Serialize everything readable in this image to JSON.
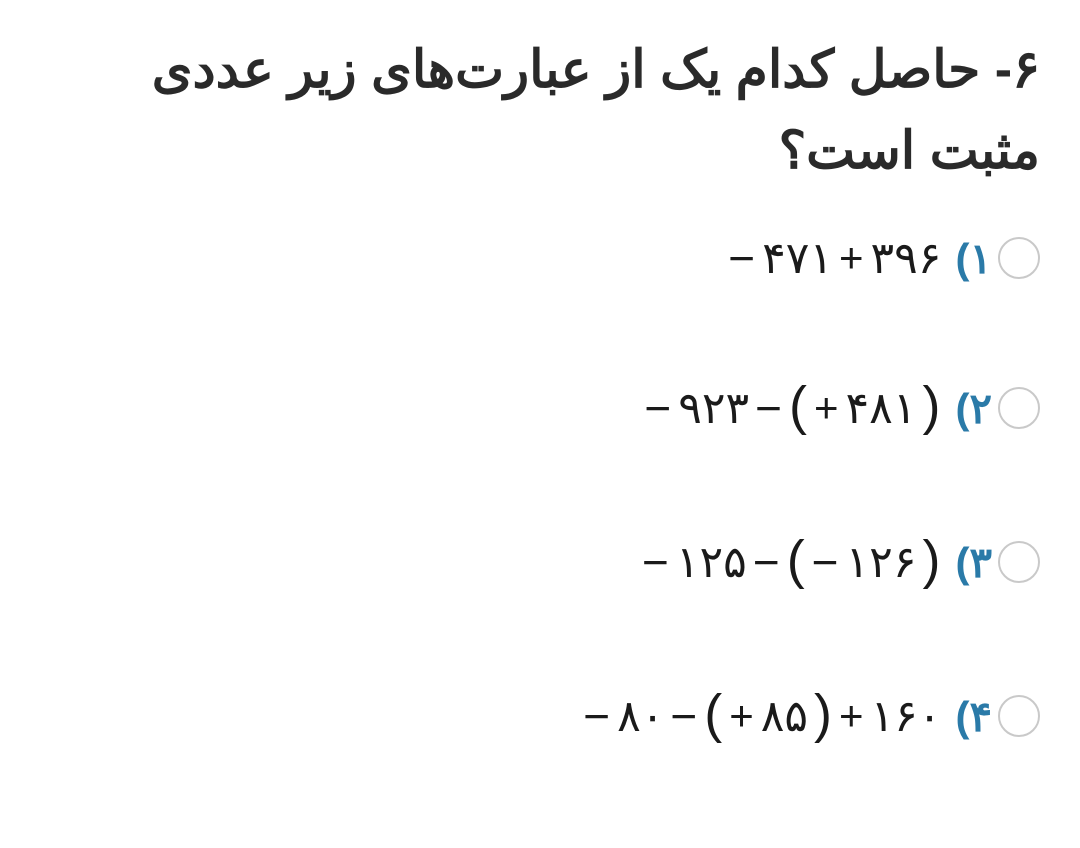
{
  "colors": {
    "text": "#2a2a2a",
    "option_label": "#2a7aa8",
    "radio_border": "#c9c9c9",
    "background": "#ffffff",
    "expr_text": "#1a1a1a"
  },
  "question": {
    "number_and_text": "۶- حاصل کدام یک از عبارت‌های زیر عددی مثبت است؟"
  },
  "options": [
    {
      "label": "۱)",
      "expr_parts": {
        "m1": "−",
        "n1": "۴۷۱",
        "p1": "+",
        "n2": "۳۹۶"
      }
    },
    {
      "label": "۲)",
      "expr_parts": {
        "m1": "−",
        "n1": "۹۲۳",
        "m2": "−",
        "lp": "(",
        "p1": "+",
        "n2": "۴۸۱",
        "rp": ")"
      }
    },
    {
      "label": "۳)",
      "expr_parts": {
        "m1": "−",
        "n1": "۱۲۵",
        "m2": "−",
        "lp": "(",
        "m3": "−",
        "n2": "۱۲۶",
        "rp": ")"
      }
    },
    {
      "label": "۴)",
      "expr_parts": {
        "m1": "−",
        "n1": "۸۰",
        "m2": "−",
        "lp": "(",
        "p1": "+",
        "n2": "۸۵",
        "rp": ")",
        "p2": "+",
        "n3": "۱۶۰"
      }
    }
  ]
}
